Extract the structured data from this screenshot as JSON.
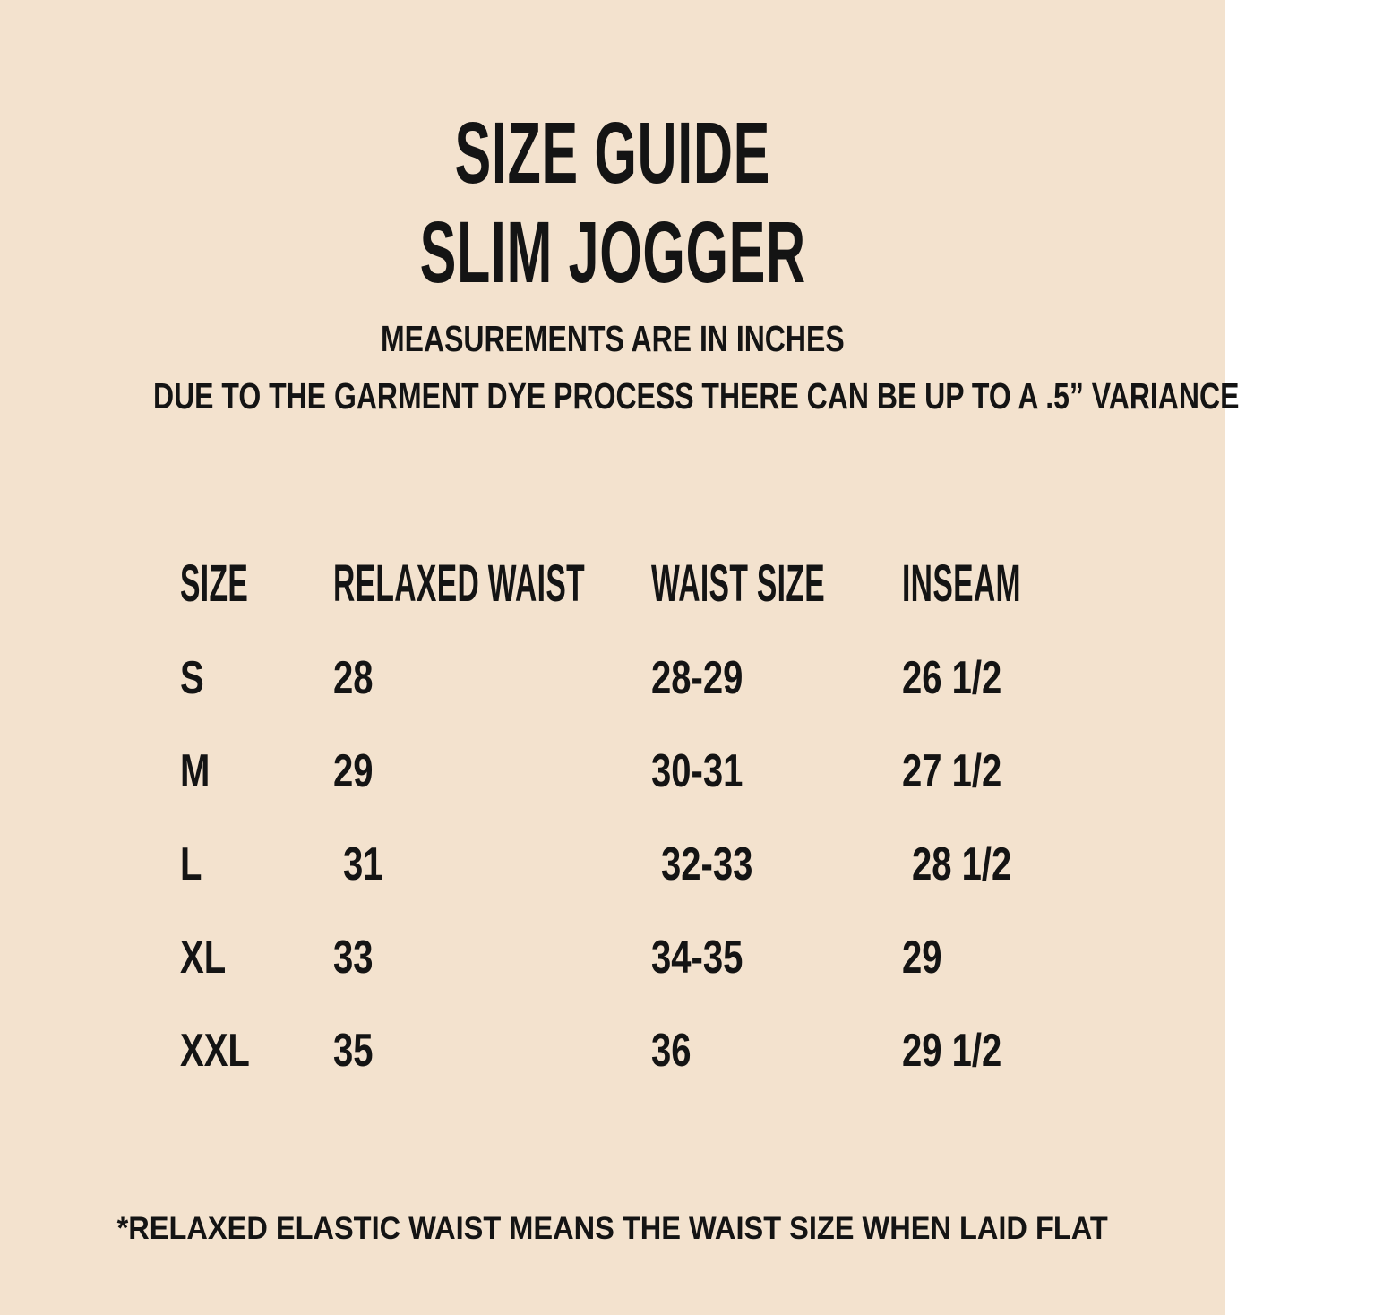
{
  "page": {
    "background_color": "#F3E2CE",
    "text_color": "#141414"
  },
  "header": {
    "title_line1": "SIZE GUIDE",
    "title_line2": "SLIM JOGGER",
    "subtitle_line1": "MEASUREMENTS ARE IN INCHES",
    "subtitle_line2": "DUE TO THE GARMENT DYE PROCESS THERE CAN BE UP TO A .5” VARIANCE"
  },
  "size_table": {
    "columns": [
      "SIZE",
      "RELAXED WAIST",
      "WAIST SIZE",
      "INSEAM"
    ],
    "rows": [
      {
        "size": "S",
        "relaxed_waist": "28",
        "waist_size": "28-29",
        "inseam": "26 1/2"
      },
      {
        "size": "M",
        "relaxed_waist": "29",
        "waist_size": "30-31",
        "inseam": "27 1/2"
      },
      {
        "size": "L",
        "relaxed_waist": "31",
        "waist_size": "32-33",
        "inseam": "28 1/2"
      },
      {
        "size": "XL",
        "relaxed_waist": "33",
        "waist_size": "34-35",
        "inseam": "29"
      },
      {
        "size": "XXL",
        "relaxed_waist": "35",
        "waist_size": "36",
        "inseam": "29 1/2"
      }
    ]
  },
  "footnote": "*RELAXED ELASTIC WAIST MEANS THE WAIST SIZE WHEN LAID FLAT"
}
